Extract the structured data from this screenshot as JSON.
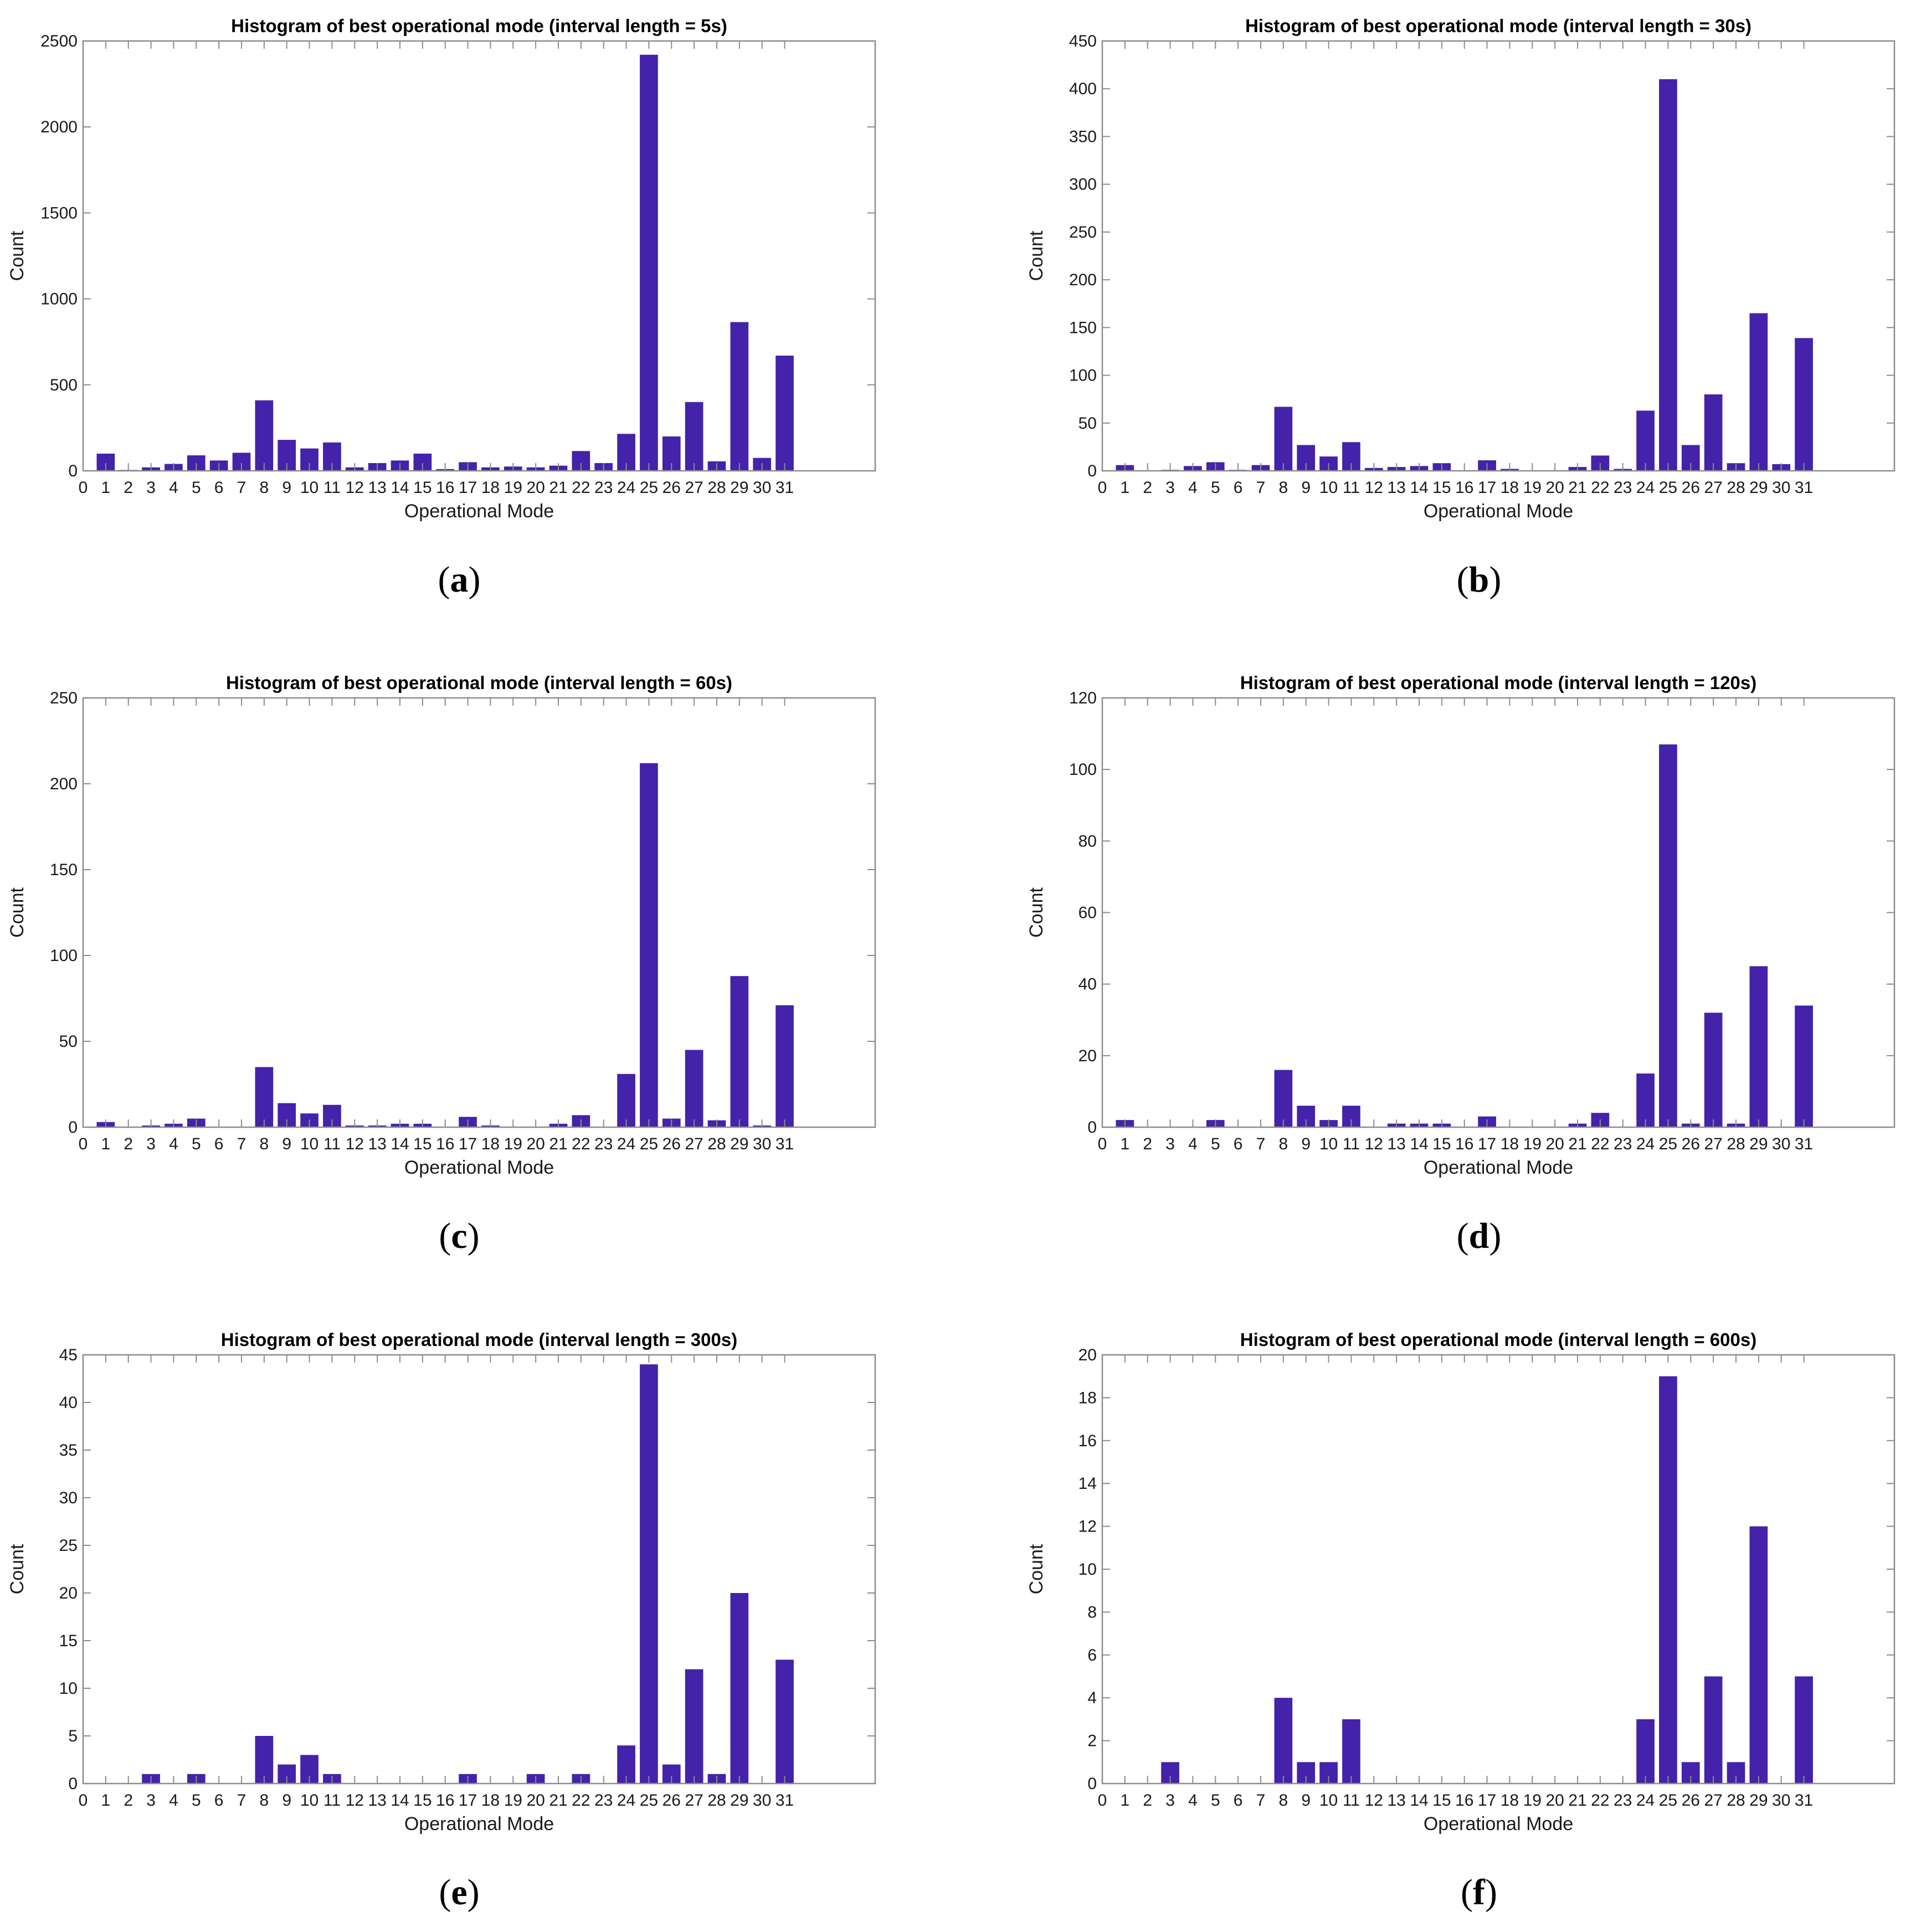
{
  "figure": {
    "bar_color": "#4422aa",
    "axis_color": "#8c8c8c",
    "background": "#ffffff"
  },
  "chart_data": [
    {
      "type": "bar",
      "panel": "(a)",
      "caption_letter": "a",
      "title": "Histogram of best operational mode (interval length = 5s)",
      "xlabel": "Operational Mode",
      "ylabel": "Count",
      "categories": [
        1,
        2,
        3,
        4,
        5,
        6,
        7,
        8,
        9,
        10,
        11,
        12,
        13,
        14,
        15,
        16,
        17,
        18,
        19,
        20,
        21,
        22,
        23,
        24,
        25,
        26,
        27,
        28,
        29,
        30,
        31
      ],
      "values": [
        100,
        5,
        20,
        40,
        90,
        60,
        105,
        410,
        180,
        130,
        165,
        20,
        45,
        60,
        100,
        10,
        50,
        20,
        25,
        20,
        30,
        115,
        45,
        215,
        2420,
        200,
        400,
        55,
        865,
        75,
        670
      ],
      "xlim": [
        0,
        35
      ],
      "ylim": [
        0,
        2500
      ],
      "xticks": [
        "0",
        "1",
        "2",
        "3",
        "4",
        "5",
        "6",
        "7",
        "8",
        "9",
        "10",
        "11",
        "12",
        "13",
        "14",
        "15",
        "16",
        "17",
        "18",
        "19",
        "20",
        "21",
        "22",
        "23",
        "24",
        "25",
        "26",
        "27",
        "28",
        "29",
        "30",
        "31"
      ],
      "yticks": [
        "0",
        "500",
        "1000",
        "1500",
        "2000",
        "2500"
      ]
    },
    {
      "type": "bar",
      "panel": "(b)",
      "caption_letter": "b",
      "title": "Histogram of best operational mode (interval length = 30s)",
      "xlabel": "Operational Mode",
      "ylabel": "Count",
      "categories": [
        1,
        2,
        3,
        4,
        5,
        6,
        7,
        8,
        9,
        10,
        11,
        12,
        13,
        14,
        15,
        16,
        17,
        18,
        19,
        20,
        21,
        22,
        23,
        24,
        25,
        26,
        27,
        28,
        29,
        30,
        31
      ],
      "values": [
        6,
        0,
        1,
        5,
        9,
        1,
        6,
        67,
        27,
        15,
        30,
        3,
        4,
        5,
        8,
        0,
        11,
        2,
        0,
        0,
        4,
        16,
        2,
        63,
        410,
        27,
        80,
        8,
        165,
        7,
        139
      ],
      "xlim": [
        0,
        35
      ],
      "ylim": [
        0,
        450
      ],
      "xticks": [
        "0",
        "1",
        "2",
        "3",
        "4",
        "5",
        "6",
        "7",
        "8",
        "9",
        "10",
        "11",
        "12",
        "13",
        "14",
        "15",
        "16",
        "17",
        "18",
        "19",
        "20",
        "21",
        "22",
        "23",
        "24",
        "25",
        "26",
        "27",
        "28",
        "29",
        "30",
        "31"
      ],
      "yticks": [
        "0",
        "50",
        "100",
        "150",
        "200",
        "250",
        "300",
        "350",
        "400",
        "450"
      ]
    },
    {
      "type": "bar",
      "panel": "(c)",
      "caption_letter": "c",
      "title": "Histogram of best operational mode (interval length = 60s)",
      "xlabel": "Operational Mode",
      "ylabel": "Count",
      "categories": [
        1,
        2,
        3,
        4,
        5,
        6,
        7,
        8,
        9,
        10,
        11,
        12,
        13,
        14,
        15,
        16,
        17,
        18,
        19,
        20,
        21,
        22,
        23,
        24,
        25,
        26,
        27,
        28,
        29,
        30,
        31
      ],
      "values": [
        3,
        0,
        1,
        2,
        5,
        0,
        0,
        35,
        14,
        8,
        13,
        1,
        1,
        2,
        2,
        0,
        6,
        1,
        0,
        0,
        2,
        7,
        0,
        31,
        212,
        5,
        45,
        4,
        88,
        1,
        71
      ],
      "xlim": [
        0,
        35
      ],
      "ylim": [
        0,
        250
      ],
      "xticks": [
        "0",
        "1",
        "2",
        "3",
        "4",
        "5",
        "6",
        "7",
        "8",
        "9",
        "10",
        "11",
        "12",
        "13",
        "14",
        "15",
        "16",
        "17",
        "18",
        "19",
        "20",
        "21",
        "22",
        "23",
        "24",
        "25",
        "26",
        "27",
        "28",
        "29",
        "30",
        "31"
      ],
      "yticks": [
        "0",
        "50",
        "100",
        "150",
        "200",
        "250"
      ]
    },
    {
      "type": "bar",
      "panel": "(d)",
      "caption_letter": "d",
      "title": "Histogram of best operational mode (interval length = 120s)",
      "xlabel": "Operational Mode",
      "ylabel": "Count",
      "categories": [
        1,
        2,
        3,
        4,
        5,
        6,
        7,
        8,
        9,
        10,
        11,
        12,
        13,
        14,
        15,
        16,
        17,
        18,
        19,
        20,
        21,
        22,
        23,
        24,
        25,
        26,
        27,
        28,
        29,
        30,
        31
      ],
      "values": [
        2,
        0,
        0,
        0,
        2,
        0,
        0,
        16,
        6,
        2,
        6,
        0,
        1,
        1,
        1,
        0,
        3,
        0,
        0,
        0,
        1,
        4,
        0,
        15,
        107,
        1,
        32,
        1,
        45,
        0,
        34
      ],
      "xlim": [
        0,
        35
      ],
      "ylim": [
        0,
        120
      ],
      "xticks": [
        "0",
        "1",
        "2",
        "3",
        "4",
        "5",
        "6",
        "7",
        "8",
        "9",
        "10",
        "11",
        "12",
        "13",
        "14",
        "15",
        "16",
        "17",
        "18",
        "19",
        "20",
        "21",
        "22",
        "23",
        "24",
        "25",
        "26",
        "27",
        "28",
        "29",
        "30",
        "31"
      ],
      "yticks": [
        "0",
        "20",
        "40",
        "60",
        "80",
        "100",
        "120"
      ]
    },
    {
      "type": "bar",
      "panel": "(e)",
      "caption_letter": "e",
      "title": "Histogram of best operational mode (interval length = 300s)",
      "xlabel": "Operational Mode",
      "ylabel": "Count",
      "categories": [
        1,
        2,
        3,
        4,
        5,
        6,
        7,
        8,
        9,
        10,
        11,
        12,
        13,
        14,
        15,
        16,
        17,
        18,
        19,
        20,
        21,
        22,
        23,
        24,
        25,
        26,
        27,
        28,
        29,
        30,
        31
      ],
      "values": [
        0,
        0,
        1,
        0,
        1,
        0,
        0,
        5,
        2,
        3,
        1,
        0,
        0,
        0,
        0,
        0,
        1,
        0,
        0,
        1,
        0,
        1,
        0,
        4,
        44,
        2,
        12,
        1,
        20,
        0,
        13
      ],
      "xlim": [
        0,
        35
      ],
      "ylim": [
        0,
        45
      ],
      "xticks": [
        "0",
        "1",
        "2",
        "3",
        "4",
        "5",
        "6",
        "7",
        "8",
        "9",
        "10",
        "11",
        "12",
        "13",
        "14",
        "15",
        "16",
        "17",
        "18",
        "19",
        "20",
        "21",
        "22",
        "23",
        "24",
        "25",
        "26",
        "27",
        "28",
        "29",
        "30",
        "31"
      ],
      "yticks": [
        "0",
        "5",
        "10",
        "15",
        "20",
        "25",
        "30",
        "35",
        "40",
        "45"
      ]
    },
    {
      "type": "bar",
      "panel": "(f)",
      "caption_letter": "f",
      "title": "Histogram of best operational mode (interval length = 600s)",
      "xlabel": "Operational Mode",
      "ylabel": "Count",
      "categories": [
        1,
        2,
        3,
        4,
        5,
        6,
        7,
        8,
        9,
        10,
        11,
        12,
        13,
        14,
        15,
        16,
        17,
        18,
        19,
        20,
        21,
        22,
        23,
        24,
        25,
        26,
        27,
        28,
        29,
        30,
        31
      ],
      "values": [
        0,
        0,
        1,
        0,
        0,
        0,
        0,
        4,
        1,
        1,
        3,
        0,
        0,
        0,
        0,
        0,
        0,
        0,
        0,
        0,
        0,
        0,
        0,
        3,
        19,
        1,
        5,
        1,
        12,
        0,
        5
      ],
      "xlim": [
        0,
        35
      ],
      "ylim": [
        0,
        20
      ],
      "xticks": [
        "0",
        "1",
        "2",
        "3",
        "4",
        "5",
        "6",
        "7",
        "8",
        "9",
        "10",
        "11",
        "12",
        "13",
        "14",
        "15",
        "16",
        "17",
        "18",
        "19",
        "20",
        "21",
        "22",
        "23",
        "24",
        "25",
        "26",
        "27",
        "28",
        "29",
        "30",
        "31"
      ],
      "yticks": [
        "0",
        "2",
        "4",
        "6",
        "8",
        "10",
        "12",
        "14",
        "16",
        "18",
        "20"
      ]
    }
  ]
}
